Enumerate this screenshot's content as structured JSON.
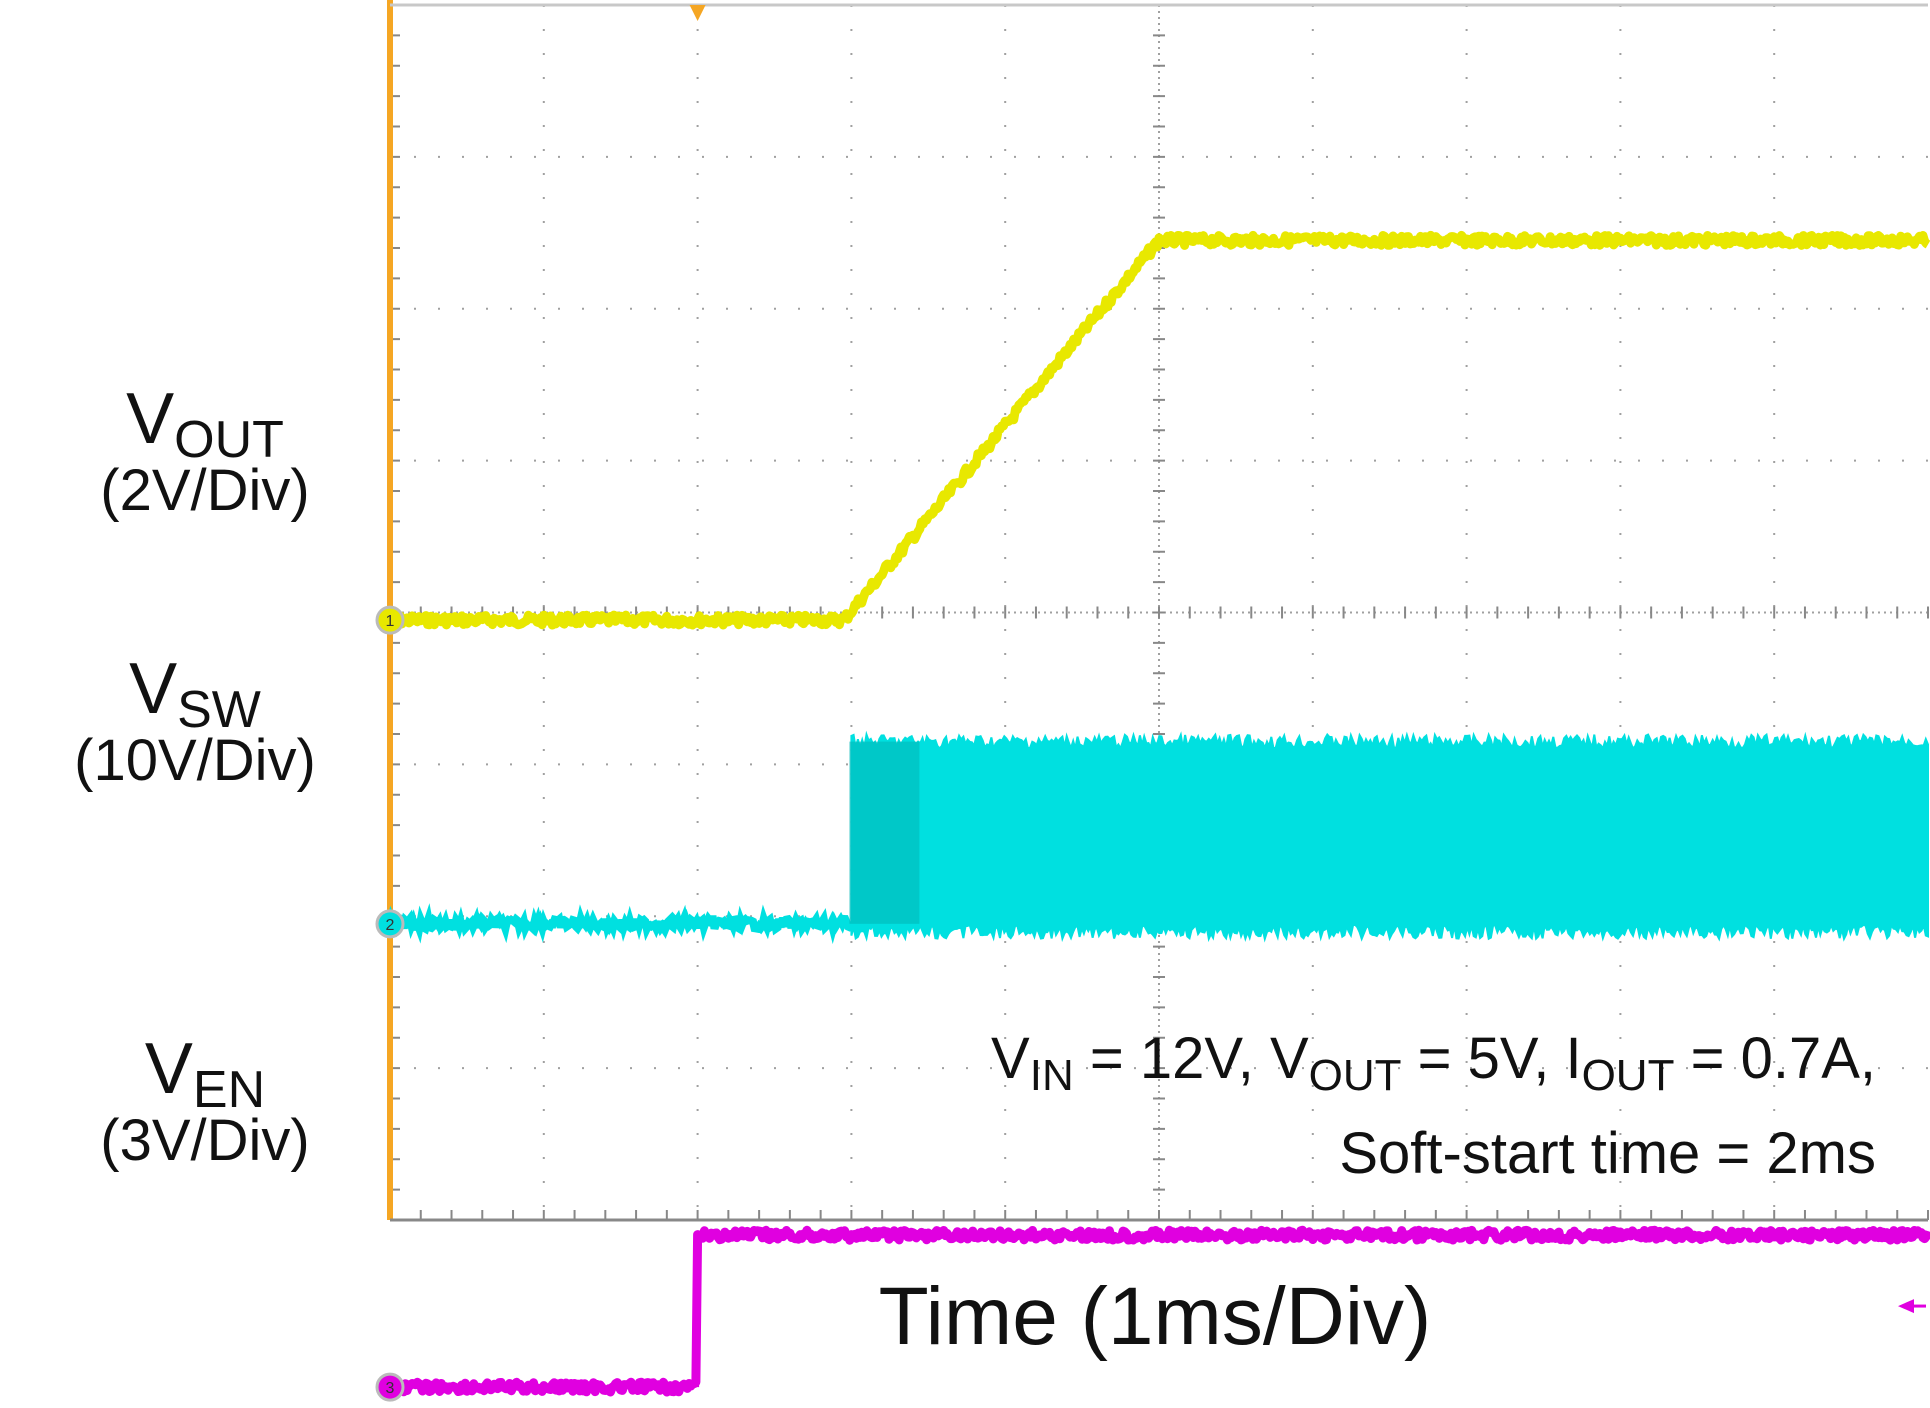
{
  "chart_data": {
    "type": "line",
    "xlabel": "Time (1ms/Div)",
    "x_unit": "ms",
    "xlim": [
      0,
      10
    ],
    "divisions": {
      "horizontal": 10,
      "vertical": 8
    },
    "grid": true,
    "series": [
      {
        "name": "VOUT",
        "scale": "(2V/Div)",
        "color": "#e8e800",
        "marker": "1",
        "points": [
          [
            0,
            0
          ],
          [
            2.95,
            0
          ],
          [
            5.0,
            5.0
          ],
          [
            10.0,
            5.0
          ]
        ],
        "unit": "V"
      },
      {
        "name": "VSW",
        "scale": "(10V/Div)",
        "color": "#00e0e0",
        "marker": "2",
        "low": 0,
        "high": 12,
        "switching_start_ms": 3.0,
        "unit": "V"
      },
      {
        "name": "VEN",
        "scale": "(3V/Div)",
        "color": "#e000e0",
        "marker": "3",
        "points": [
          [
            0,
            0
          ],
          [
            2.0,
            0
          ],
          [
            2.0,
            3.0
          ],
          [
            10.0,
            3.0
          ]
        ],
        "unit": "V"
      }
    ],
    "annotation": {
      "line1_prefix_v": "V",
      "line1_sub_in": "IN",
      "line1_part1": " = 12V, V",
      "line1_sub_out": "OUT",
      "line1_part2": " = 5V, I",
      "line1_sub_iout": "OUT",
      "line1_part3": " = 0.7A,",
      "line2": "Soft-start time = 2ms"
    }
  },
  "labels": {
    "vout_main": "V",
    "vout_sub": "OUT",
    "vout_scale": "(2V/Div)",
    "vsw_main": "V",
    "vsw_sub": "SW",
    "vsw_scale": "(10V/Div)",
    "ven_main": "V",
    "ven_sub": "EN",
    "ven_scale": "(3V/Div)"
  },
  "colors": {
    "frame": "#f5a623",
    "grid": "#a0a0a0"
  }
}
